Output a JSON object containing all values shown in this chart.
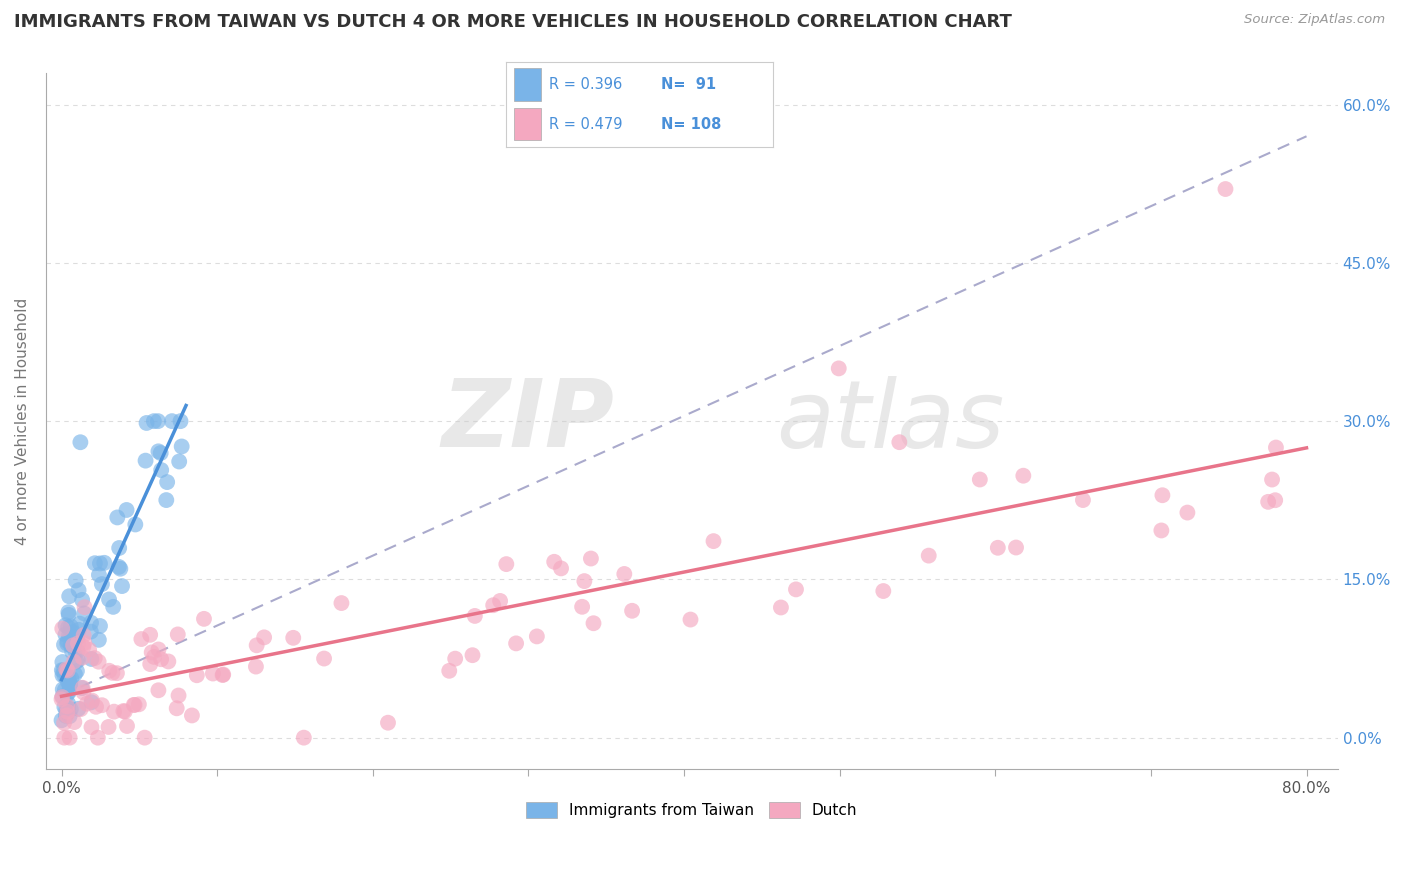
{
  "title": "IMMIGRANTS FROM TAIWAN VS DUTCH 4 OR MORE VEHICLES IN HOUSEHOLD CORRELATION CHART",
  "source": "Source: ZipAtlas.com",
  "ylabel": "4 or more Vehicles in Household",
  "ylabel_right_vals": [
    0,
    15,
    30,
    45,
    60
  ],
  "legend_taiwan_R": 0.396,
  "legend_taiwan_N": 91,
  "legend_dutch_R": 0.479,
  "legend_dutch_N": 108,
  "color_taiwan": "#7AB4E8",
  "color_dutch": "#F4A8C0",
  "color_trendline_taiwan": "#4A90D9",
  "color_trendline_dutch": "#E8748A",
  "color_dashed": "#AAAACC",
  "color_legend_text": "#4A90D9",
  "watermark_zip": "ZIP",
  "watermark_atlas": "atlas",
  "background_color": "#ffffff",
  "grid_color": "#DDDDDD",
  "xmin": 0,
  "xmax": 80,
  "ymin": 0,
  "ymax": 60
}
